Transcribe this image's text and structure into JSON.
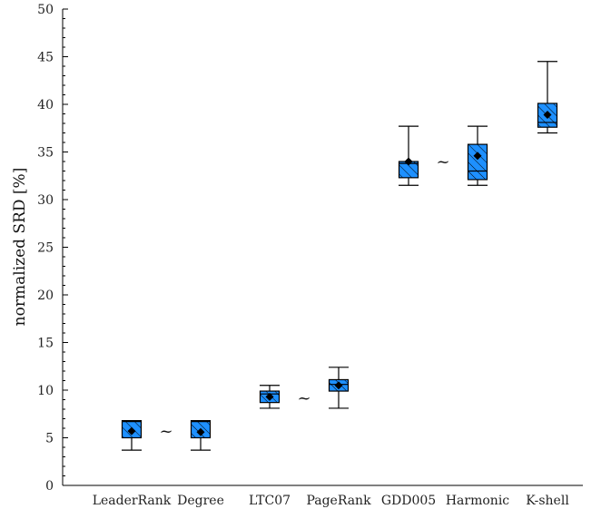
{
  "chart_data": {
    "type": "box",
    "ylabel": "normalized SRD [%]",
    "xlabel": "",
    "ylim": [
      0,
      50
    ],
    "yticks": [
      0,
      5,
      10,
      15,
      20,
      25,
      30,
      35,
      40,
      45,
      50
    ],
    "y_minor_step": 1,
    "grid": false,
    "legend": "none",
    "colors": {
      "box_fill": "#1e90ff",
      "hatch": "#000000",
      "mean_marker": "#000000",
      "axis": "#000000"
    },
    "categories": [
      "LeaderRank",
      "Degree",
      "LTC07",
      "PageRank",
      "GDD005",
      "Harmonic",
      "K-shell"
    ],
    "boxes": [
      {
        "label": "LeaderRank",
        "whisker_low": 3.7,
        "q1": 5.0,
        "median": 6.7,
        "q3": 6.8,
        "whisker_high": 6.8,
        "mean": 5.7
      },
      {
        "label": "Degree",
        "whisker_low": 3.7,
        "q1": 5.0,
        "median": 6.7,
        "q3": 6.8,
        "whisker_high": 6.8,
        "mean": 5.6
      },
      {
        "label": "LTC07",
        "whisker_low": 8.1,
        "q1": 8.7,
        "median": 9.6,
        "q3": 9.9,
        "whisker_high": 10.5,
        "mean": 9.3
      },
      {
        "label": "PageRank",
        "whisker_low": 8.1,
        "q1": 9.9,
        "median": 10.6,
        "q3": 11.1,
        "whisker_high": 12.4,
        "mean": 10.5
      },
      {
        "label": "GDD005",
        "whisker_low": 31.5,
        "q1": 32.3,
        "median": 33.8,
        "q3": 34.0,
        "whisker_high": 37.7,
        "mean": 34.0
      },
      {
        "label": "Harmonic",
        "whisker_low": 31.5,
        "q1": 32.1,
        "median": 33.0,
        "q3": 35.8,
        "whisker_high": 37.7,
        "mean": 34.6
      },
      {
        "label": "K-shell",
        "whisker_low": 37.0,
        "q1": 37.6,
        "median": 38.1,
        "q3": 40.1,
        "whisker_high": 44.5,
        "mean": 38.9
      }
    ],
    "annotations": [
      {
        "text": "~",
        "between": [
          "LeaderRank",
          "Degree"
        ],
        "y": 5.7
      },
      {
        "text": "~",
        "between": [
          "LTC07",
          "PageRank"
        ],
        "y": 9.2
      },
      {
        "text": "~",
        "between": [
          "GDD005",
          "Harmonic"
        ],
        "y": 34.0
      }
    ]
  }
}
